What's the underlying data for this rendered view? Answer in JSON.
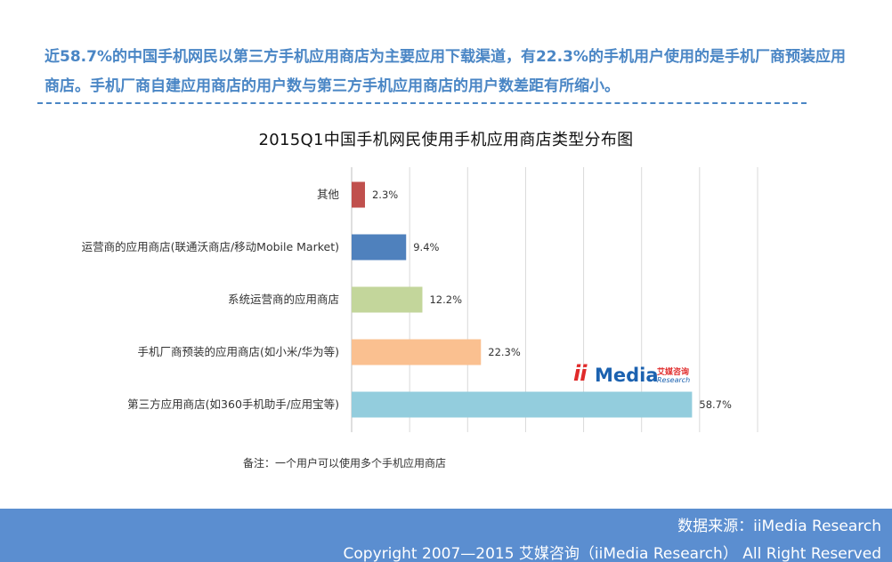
{
  "headline": "近58.7%的中国手机网民以第三方手机应用商店为主要应用下载渠道，有22.3%的手机用户使用的是手机厂商预装应用商店。手机厂商自建应用商店的用户数与第三方手机应用商店的用户数差距有所缩小。",
  "chart_data": {
    "type": "bar",
    "orientation": "horizontal",
    "title": "2015Q1中国手机网民使用手机应用商店类型分布图",
    "categories": [
      "其他",
      "运营商的应用商店(联通沃商店/移动Mobile Market)",
      "系统运营商的应用商店",
      "手机厂商预装的应用商店(如小米/华为等)",
      "第三方应用商店(如360手机助手/应用宝等)"
    ],
    "values": [
      2.3,
      9.4,
      12.2,
      22.3,
      58.7
    ],
    "value_labels": [
      "2.3%",
      "9.4%",
      "12.2%",
      "22.3%",
      "58.7%"
    ],
    "colors": [
      "#c0504d",
      "#4f81bd",
      "#c3d69b",
      "#fac090",
      "#93cddd"
    ],
    "xlim": [
      0,
      70
    ],
    "grid": true,
    "xlabel": "",
    "ylabel": ""
  },
  "logo": {
    "ii": "ii",
    "media": "Media",
    "cn": "艾媒咨询",
    "research": "Research"
  },
  "note": "备注：一个用户可以使用多个手机应用商店",
  "footer": {
    "source": "数据来源：iiMedia Research",
    "copyright": "Copyright 2007—2015 艾媒咨询（iiMedia Research） All Right Reserved"
  }
}
